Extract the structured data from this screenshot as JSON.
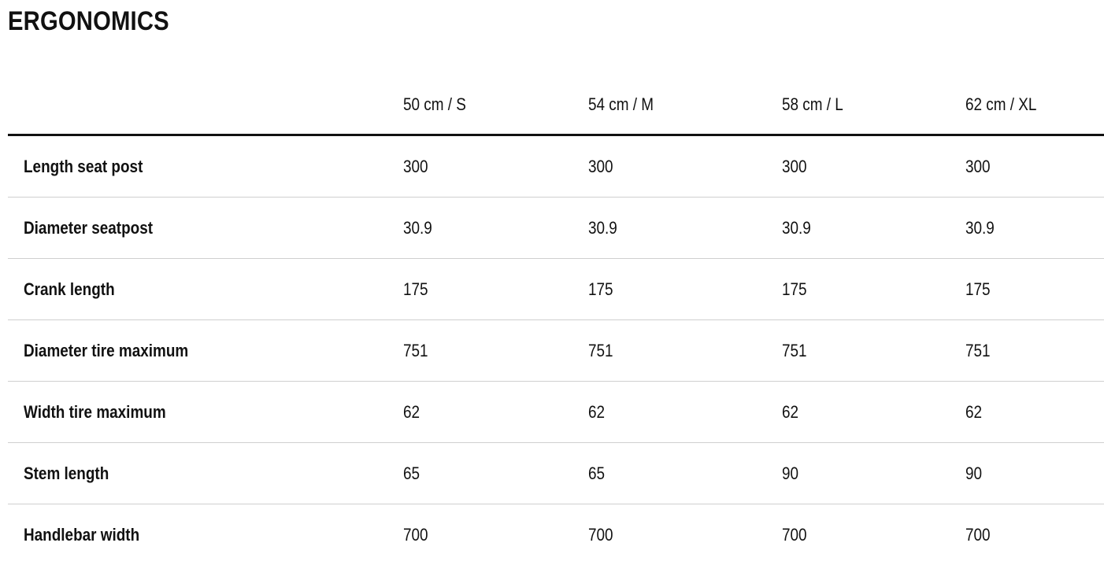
{
  "title": "ERGONOMICS",
  "columns": [
    "50 cm / S",
    "54 cm / M",
    "58 cm / L",
    "62 cm / XL"
  ],
  "rows": [
    {
      "label": "Length seat post",
      "values": [
        "300",
        "300",
        "300",
        "300"
      ]
    },
    {
      "label": "Diameter seatpost",
      "values": [
        "30.9",
        "30.9",
        "30.9",
        "30.9"
      ]
    },
    {
      "label": "Crank length",
      "values": [
        "175",
        "175",
        "175",
        "175"
      ]
    },
    {
      "label": "Diameter tire maximum",
      "values": [
        "751",
        "751",
        "751",
        "751"
      ]
    },
    {
      "label": "Width tire maximum",
      "values": [
        "62",
        "62",
        "62",
        "62"
      ]
    },
    {
      "label": "Stem length",
      "values": [
        "65",
        "65",
        "90",
        "90"
      ]
    },
    {
      "label": "Handlebar width",
      "values": [
        "700",
        "700",
        "700",
        "700"
      ]
    }
  ]
}
